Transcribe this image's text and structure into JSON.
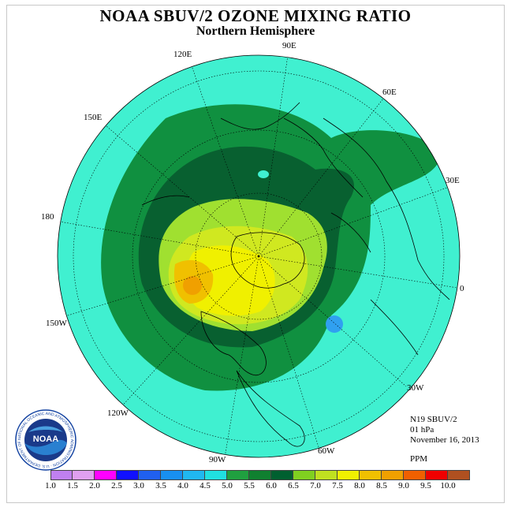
{
  "title": "NOAA SBUV/2 OZONE MIXING RATIO",
  "subtitle": "Northern Hemisphere",
  "meridian_labels": [
    "90E",
    "60E",
    "30E",
    "0",
    "30W",
    "60W",
    "90W",
    "120W",
    "150W",
    "180",
    "150E",
    "120E"
  ],
  "info": {
    "instrument": "N19 SBUV/2",
    "level": "01 hPa",
    "date": "November 16, 2013",
    "units": "PPM"
  },
  "logo": {
    "text": "NOAA",
    "ring_text": "NATIONAL OCEANIC AND ATMOSPHERIC ADMINISTRATION · U.S. DEPARTMENT OF COMMERCE"
  },
  "colorbar": {
    "ticks": [
      "1.0",
      "1.5",
      "2.0",
      "2.5",
      "3.0",
      "3.5",
      "4.0",
      "4.5",
      "5.0",
      "5.5",
      "6.0",
      "6.5",
      "7.0",
      "7.5",
      "8.0",
      "8.5",
      "9.0",
      "9.5",
      "10.0"
    ],
    "colors": [
      "#c080f0",
      "#e0a0f0",
      "#ff00ff",
      "#1010ff",
      "#2060f0",
      "#1890f0",
      "#20b8f0",
      "#20e0e0",
      "#20a040",
      "#108030",
      "#006030",
      "#80d020",
      "#c0e020",
      "#f0f000",
      "#f0c000",
      "#f0a000",
      "#f06000",
      "#f00000",
      "#b05020",
      "#806040"
    ]
  },
  "colors": {
    "background_field": "#40f0d0",
    "outer_green": "#109040",
    "dark_green": "#086030",
    "lime": "#a0e030",
    "yellow": "#f0f000",
    "orange": "#f0a000",
    "blue_spot": "#30a0f0"
  }
}
